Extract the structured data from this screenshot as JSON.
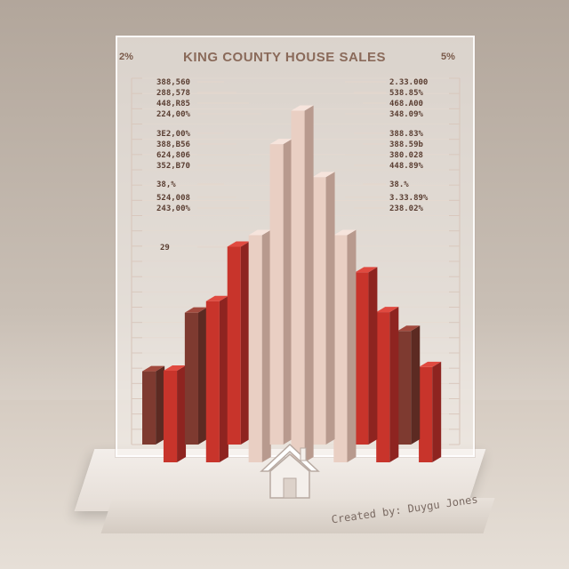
{
  "chart_data": {
    "type": "bar",
    "title": "KING COUNTY HOUSE SALES",
    "corner_labels": {
      "left": "2%",
      "right": "5%"
    },
    "left_labels": [
      "388,560",
      "288,578",
      "448,R85",
      "224,00%",
      "3E2,00%",
      "388,B56",
      "624,806",
      "352,B70",
      "38,%",
      "524,008",
      "243,00%",
      "29"
    ],
    "right_labels": [
      "2.33.000",
      "538.85%",
      "468.A00",
      "348.09%",
      "388.83%",
      "388.59b",
      "380.028",
      "448.89%",
      "38.%",
      "3.33.89%",
      "238.02%"
    ],
    "series": [
      {
        "values": [
          20,
          25,
          36,
          44,
          54,
          62,
          82,
          96,
          73,
          62,
          47,
          41,
          31,
          26
        ]
      }
    ],
    "ylim": [
      0,
      100
    ],
    "grid": true
  },
  "watermark": "Created by: Duygu Jones",
  "colors": {
    "bar_dark": "#8c3a30",
    "bar_red": "#c8342b",
    "bar_light": "#f0d6cc",
    "label": "#5a3e32"
  },
  "icons": {
    "house": "house-icon"
  }
}
